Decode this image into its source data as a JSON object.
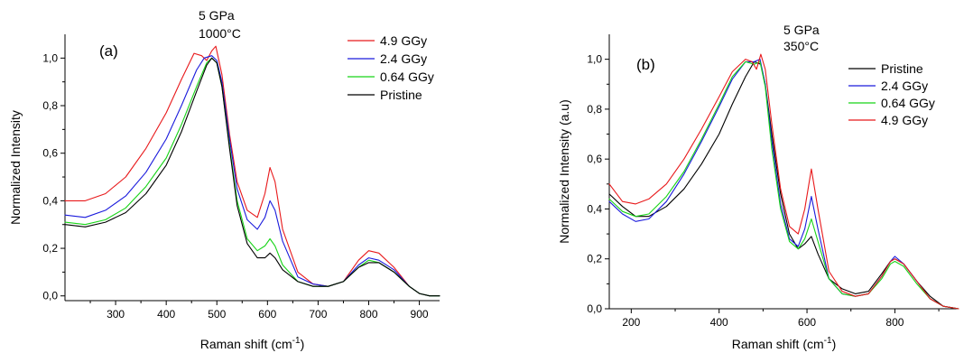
{
  "chart_data": [
    {
      "type": "line",
      "panel_label": "(a)",
      "annotations": [
        "5 GPa",
        "1000°C"
      ],
      "xlabel": "Raman shift (cm",
      "xlabel_sup": "-1",
      "xlabel_close": ")",
      "ylabel": "Normalized Intensity",
      "xlim": [
        200,
        940
      ],
      "ylim": [
        -0.02,
        1.1
      ],
      "xticks": [
        300,
        400,
        500,
        600,
        700,
        800,
        900
      ],
      "xtick_labels": [
        "300",
        "400",
        "500",
        "600",
        "700",
        "800",
        "900"
      ],
      "yticks": [
        0.0,
        0.2,
        0.4,
        0.6,
        0.8,
        1.0
      ],
      "ytick_labels": [
        "0,0",
        "0,2",
        "0,4",
        "0,6",
        "0,8",
        "1,0"
      ],
      "legend_position": "top-right",
      "series": [
        {
          "name": "4.9 GGy",
          "color": "#e8191b",
          "x": [
            200,
            240,
            280,
            320,
            360,
            400,
            430,
            455,
            470,
            480,
            490,
            498,
            510,
            525,
            540,
            560,
            580,
            595,
            605,
            615,
            630,
            660,
            690,
            720,
            750,
            780,
            800,
            820,
            850,
            880,
            900,
            920,
            940
          ],
          "y": [
            0.4,
            0.4,
            0.43,
            0.5,
            0.62,
            0.77,
            0.91,
            1.02,
            1.01,
            0.99,
            1.03,
            1.05,
            0.93,
            0.68,
            0.48,
            0.36,
            0.33,
            0.43,
            0.54,
            0.48,
            0.28,
            0.1,
            0.05,
            0.04,
            0.06,
            0.15,
            0.19,
            0.18,
            0.12,
            0.04,
            0.01,
            0.0,
            0.0
          ]
        },
        {
          "name": "2.4 GGy",
          "color": "#1a1adc",
          "x": [
            200,
            240,
            280,
            320,
            360,
            400,
            430,
            460,
            475,
            490,
            500,
            510,
            525,
            540,
            560,
            580,
            595,
            605,
            615,
            630,
            660,
            690,
            720,
            750,
            780,
            800,
            820,
            850,
            880,
            900,
            920,
            940
          ],
          "y": [
            0.34,
            0.33,
            0.36,
            0.42,
            0.52,
            0.66,
            0.8,
            0.95,
            1.0,
            1.01,
            0.99,
            0.9,
            0.66,
            0.45,
            0.32,
            0.28,
            0.33,
            0.4,
            0.36,
            0.23,
            0.08,
            0.05,
            0.04,
            0.06,
            0.13,
            0.16,
            0.15,
            0.11,
            0.04,
            0.01,
            0.0,
            0.0
          ]
        },
        {
          "name": "0.64 GGy",
          "color": "#17d417",
          "x": [
            200,
            240,
            280,
            320,
            360,
            400,
            430,
            460,
            480,
            490,
            500,
            510,
            525,
            540,
            560,
            580,
            595,
            605,
            615,
            630,
            660,
            690,
            720,
            750,
            780,
            800,
            820,
            850,
            880,
            900,
            920,
            940
          ],
          "y": [
            0.31,
            0.3,
            0.32,
            0.37,
            0.46,
            0.58,
            0.72,
            0.88,
            0.98,
            1.0,
            0.98,
            0.88,
            0.63,
            0.4,
            0.24,
            0.19,
            0.21,
            0.24,
            0.21,
            0.13,
            0.06,
            0.04,
            0.04,
            0.06,
            0.12,
            0.15,
            0.14,
            0.1,
            0.04,
            0.01,
            0.0,
            0.0
          ]
        },
        {
          "name": "Pristine",
          "color": "#000000",
          "x": [
            200,
            240,
            280,
            320,
            360,
            400,
            430,
            460,
            480,
            490,
            500,
            510,
            525,
            540,
            560,
            580,
            595,
            605,
            615,
            630,
            660,
            690,
            720,
            750,
            780,
            800,
            820,
            850,
            880,
            900,
            920,
            940
          ],
          "y": [
            0.3,
            0.29,
            0.31,
            0.35,
            0.43,
            0.55,
            0.69,
            0.86,
            0.97,
            1.0,
            0.98,
            0.88,
            0.62,
            0.38,
            0.22,
            0.16,
            0.16,
            0.18,
            0.16,
            0.11,
            0.06,
            0.04,
            0.04,
            0.06,
            0.12,
            0.14,
            0.14,
            0.1,
            0.04,
            0.01,
            0.0,
            0.0
          ]
        }
      ]
    },
    {
      "type": "line",
      "panel_label": "(b)",
      "annotations": [
        "5 GPa",
        "350°C"
      ],
      "xlabel": "Raman shift (cm",
      "xlabel_sup": "-1",
      "xlabel_close": ")",
      "ylabel": "Normalized Intensity (a.u)",
      "xlim": [
        150,
        945
      ],
      "ylim": [
        0.0,
        1.1
      ],
      "xticks": [
        200,
        400,
        600,
        800
      ],
      "xtick_labels": [
        "200",
        "400",
        "600",
        "800"
      ],
      "yticks": [
        0.0,
        0.2,
        0.4,
        0.6,
        0.8,
        1.0
      ],
      "ytick_labels": [
        "0,0",
        "0,2",
        "0,4",
        "0,6",
        "0,8",
        "1,0"
      ],
      "legend_position": "top-right",
      "series": [
        {
          "name": "Pristine",
          "color": "#000000",
          "x": [
            150,
            180,
            210,
            240,
            280,
            320,
            360,
            400,
            430,
            460,
            480,
            495,
            505,
            520,
            540,
            560,
            580,
            595,
            610,
            625,
            650,
            680,
            710,
            740,
            770,
            790,
            800,
            820,
            850,
            880,
            910,
            945
          ],
          "y": [
            0.46,
            0.41,
            0.37,
            0.37,
            0.41,
            0.48,
            0.58,
            0.7,
            0.82,
            0.93,
            0.99,
            0.98,
            0.9,
            0.7,
            0.46,
            0.3,
            0.24,
            0.26,
            0.29,
            0.22,
            0.12,
            0.08,
            0.06,
            0.07,
            0.14,
            0.19,
            0.2,
            0.18,
            0.11,
            0.05,
            0.01,
            0.0
          ]
        },
        {
          "name": "2.4 GGy",
          "color": "#1a1adc",
          "x": [
            150,
            180,
            210,
            240,
            280,
            320,
            360,
            400,
            430,
            460,
            480,
            493,
            505,
            520,
            540,
            560,
            580,
            595,
            610,
            625,
            650,
            680,
            710,
            740,
            770,
            790,
            800,
            820,
            850,
            880,
            910,
            945
          ],
          "y": [
            0.43,
            0.38,
            0.35,
            0.36,
            0.43,
            0.54,
            0.67,
            0.81,
            0.92,
            0.99,
            0.99,
            1.0,
            0.9,
            0.67,
            0.42,
            0.28,
            0.25,
            0.32,
            0.45,
            0.32,
            0.12,
            0.06,
            0.05,
            0.06,
            0.13,
            0.19,
            0.21,
            0.18,
            0.11,
            0.04,
            0.01,
            0.0
          ]
        },
        {
          "name": "0.64 GGy",
          "color": "#17d417",
          "x": [
            150,
            180,
            210,
            240,
            280,
            320,
            360,
            400,
            430,
            460,
            480,
            493,
            505,
            520,
            540,
            560,
            580,
            595,
            610,
            625,
            650,
            680,
            710,
            740,
            770,
            790,
            800,
            820,
            850,
            880,
            910,
            945
          ],
          "y": [
            0.44,
            0.39,
            0.37,
            0.38,
            0.45,
            0.55,
            0.68,
            0.82,
            0.93,
            0.99,
            0.98,
            0.99,
            0.89,
            0.64,
            0.4,
            0.27,
            0.24,
            0.28,
            0.36,
            0.27,
            0.12,
            0.06,
            0.05,
            0.06,
            0.12,
            0.18,
            0.19,
            0.17,
            0.1,
            0.04,
            0.01,
            0.0
          ]
        },
        {
          "name": "4.9 GGy",
          "color": "#e8191b",
          "x": [
            150,
            180,
            210,
            240,
            280,
            320,
            360,
            400,
            430,
            460,
            475,
            485,
            495,
            505,
            520,
            540,
            560,
            580,
            595,
            610,
            625,
            650,
            680,
            710,
            740,
            770,
            790,
            800,
            820,
            850,
            880,
            910,
            945
          ],
          "y": [
            0.5,
            0.43,
            0.42,
            0.44,
            0.5,
            0.6,
            0.72,
            0.85,
            0.95,
            1.0,
            0.99,
            0.96,
            1.02,
            0.96,
            0.74,
            0.48,
            0.33,
            0.3,
            0.4,
            0.56,
            0.4,
            0.15,
            0.07,
            0.05,
            0.06,
            0.13,
            0.19,
            0.2,
            0.18,
            0.11,
            0.04,
            0.01,
            0.0
          ]
        }
      ]
    }
  ]
}
